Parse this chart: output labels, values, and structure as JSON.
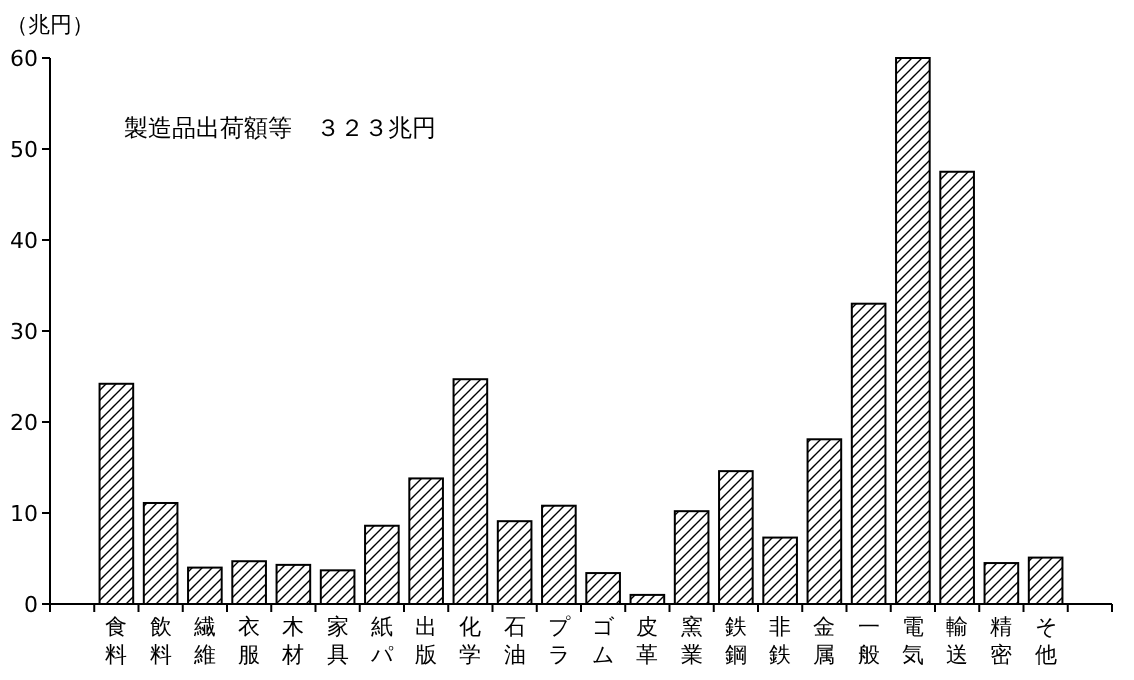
{
  "chart_data": {
    "type": "bar",
    "ylabel": "（兆円）",
    "annotations": [
      "製造品出荷額等　３２３兆円"
    ],
    "categories": [
      "食料",
      "飲料",
      "繊維",
      "衣服",
      "木材",
      "家具",
      "紙パ",
      "出版",
      "化学",
      "石油",
      "プラ",
      "ゴム",
      "皮革",
      "窯業",
      "鉄鋼",
      "非鉄",
      "金属",
      "一般",
      "電気",
      "輸送",
      "精密",
      "そ他"
    ],
    "values": [
      24.2,
      11.1,
      4.0,
      4.7,
      4.3,
      3.7,
      8.6,
      13.8,
      24.7,
      9.1,
      10.8,
      3.4,
      1.0,
      10.2,
      14.6,
      7.3,
      18.1,
      33.0,
      60.0,
      47.5,
      4.5,
      5.1
    ],
    "color": "#000000",
    "ylim": [
      0,
      60
    ],
    "yticks": [
      0,
      10,
      20,
      30,
      40,
      50,
      60
    ],
    "grid": false
  }
}
